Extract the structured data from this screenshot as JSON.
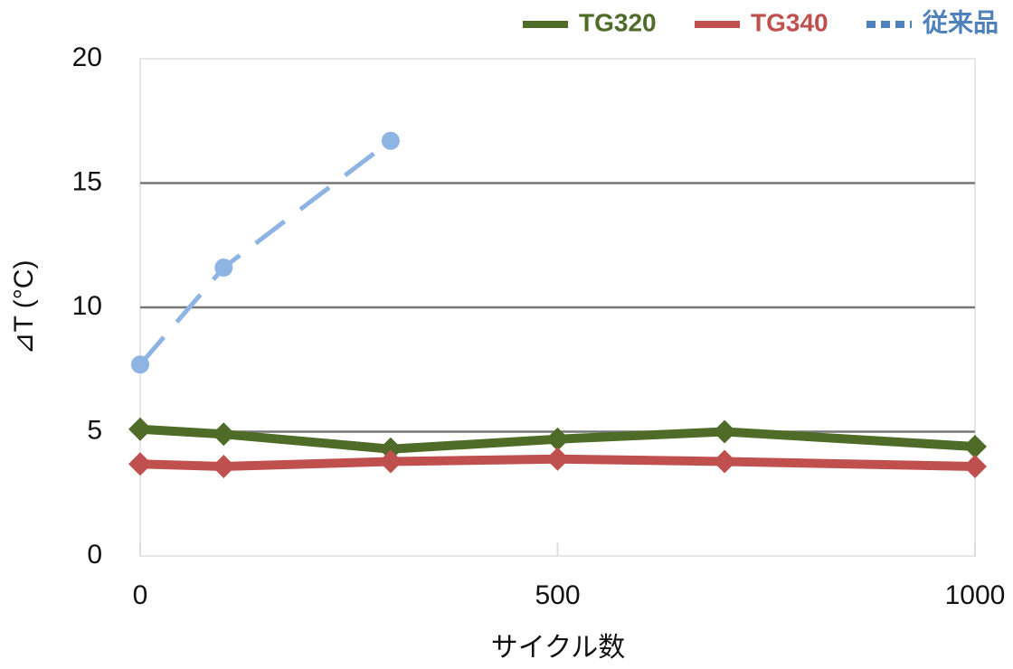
{
  "chart_data": {
    "type": "line",
    "x": [
      0,
      100,
      300,
      500,
      700,
      1000
    ],
    "series": [
      {
        "name": "TG320",
        "color": "#4f6b28",
        "marker": "diamond",
        "dash": false,
        "values": [
          5.1,
          4.9,
          4.3,
          4.7,
          5.0,
          4.4
        ]
      },
      {
        "name": "TG340",
        "color": "#c0504d",
        "marker": "diamond",
        "dash": false,
        "values": [
          3.7,
          3.6,
          3.8,
          3.9,
          3.8,
          3.6
        ]
      },
      {
        "name": "従来品",
        "color": "#8db4e2",
        "marker": "circle",
        "dash": true,
        "values": [
          7.7,
          11.6,
          16.7,
          null,
          null,
          null
        ]
      }
    ],
    "xlabel": "サイクル数",
    "ylabel": "⊿T (°C)",
    "xlim": [
      0,
      1000
    ],
    "xticks": [
      0,
      500,
      1000
    ],
    "ylim": [
      0,
      20
    ],
    "yticks": [
      0,
      5,
      10,
      15,
      20
    ],
    "grid": true,
    "legend": "top-right"
  }
}
